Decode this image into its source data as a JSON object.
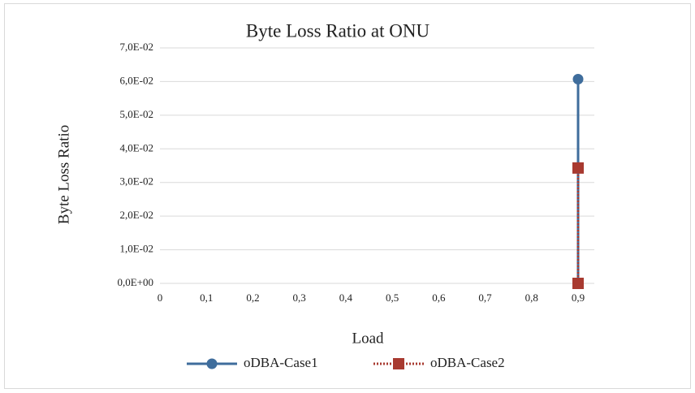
{
  "chart_data": {
    "type": "line",
    "title": "Byte Loss Ratio at ONU",
    "x_label": "Load",
    "y_label": "Byte Loss Ratio",
    "xlim": [
      0,
      0.9
    ],
    "xticks": [
      0,
      {
        "value": 0.1,
        "label": "0,1"
      },
      {
        "value": 0.2,
        "label": "0,2"
      },
      {
        "value": 0.3,
        "label": "0,3"
      },
      {
        "value": 0.4,
        "label": "0,4"
      },
      {
        "value": 0.5,
        "label": "0,5"
      },
      {
        "value": 0.6,
        "label": "0,6"
      },
      {
        "value": 0.7,
        "label": "0,7"
      },
      {
        "value": 0.8,
        "label": "0,8"
      },
      {
        "value": 0.9,
        "label": "0,9"
      }
    ],
    "ylim": [
      0,
      0.07
    ],
    "yticks": [
      {
        "value": 0,
        "label": "0,0E+00"
      },
      {
        "value": 0.01,
        "label": "1,0E-02"
      },
      {
        "value": 0.02,
        "label": "2,0E-02"
      },
      {
        "value": 0.03,
        "label": "3,0E-02"
      },
      {
        "value": 0.04,
        "label": "4,0E-02"
      },
      {
        "value": 0.05,
        "label": "5,0E-02"
      },
      {
        "value": 0.06,
        "label": "6,0E-02"
      },
      {
        "value": 0.07,
        "label": "7,0E-02"
      }
    ],
    "grid": true,
    "series": [
      {
        "name": "oDBA-Case1",
        "color": "#3f6d9c",
        "marker": "circle",
        "x": [
          0.9,
          0.9
        ],
        "values": [
          0,
          0.0607
        ]
      },
      {
        "name": "oDBA-Case2",
        "color": "#a83a30",
        "marker": "square",
        "dashed": true,
        "x": [
          0.9,
          0.9
        ],
        "values": [
          0,
          0.0343
        ]
      }
    ]
  }
}
